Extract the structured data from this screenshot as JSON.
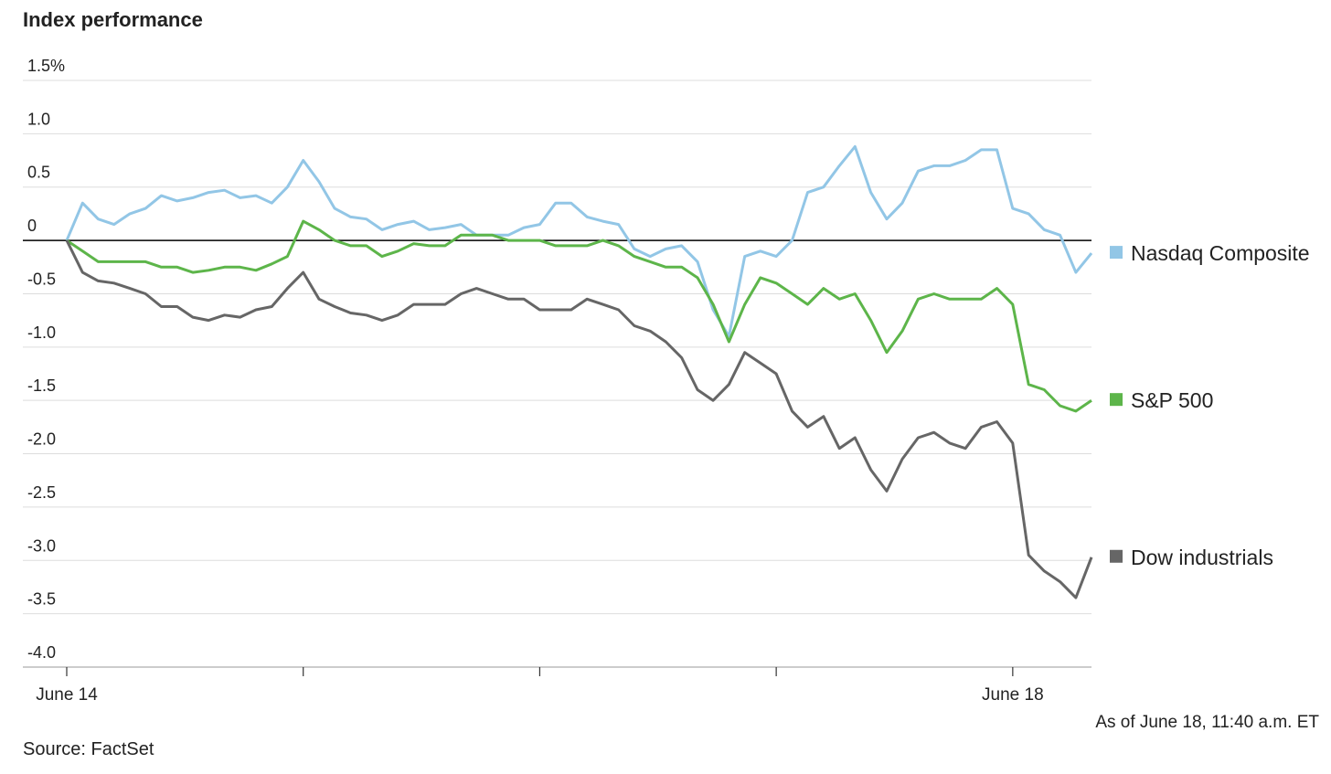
{
  "chart_data": {
    "type": "line",
    "title": "Index performance",
    "note": "As of June 18, 11:40 a.m. ET",
    "source": "Source: FactSet",
    "x": [
      0,
      0.067,
      0.133,
      0.2,
      0.267,
      0.333,
      0.4,
      0.467,
      0.533,
      0.6,
      0.667,
      0.733,
      0.8,
      0.867,
      0.933,
      1,
      1.067,
      1.133,
      1.2,
      1.267,
      1.333,
      1.4,
      1.467,
      1.533,
      1.6,
      1.667,
      1.733,
      1.8,
      1.867,
      1.933,
      2,
      2.067,
      2.133,
      2.2,
      2.267,
      2.333,
      2.4,
      2.467,
      2.533,
      2.6,
      2.667,
      2.733,
      2.8,
      2.867,
      2.933,
      3,
      3.067,
      3.133,
      3.2,
      3.267,
      3.333,
      3.4,
      3.467,
      3.533,
      3.6,
      3.667,
      3.733,
      3.8,
      3.867,
      3.933,
      4,
      4.067,
      4.133,
      4.2,
      4.267,
      4.333
    ],
    "xlim": [
      0,
      4.333
    ],
    "xticks": [
      {
        "value": 0,
        "label": "June 14"
      },
      {
        "value": 1,
        "label": null
      },
      {
        "value": 2,
        "label": null
      },
      {
        "value": 3,
        "label": null
      },
      {
        "value": 4,
        "label": "June 18"
      }
    ],
    "ylim": [
      -4.0,
      1.5
    ],
    "yticks": [
      {
        "value": 1.5,
        "label": "1.5%"
      },
      {
        "value": 1,
        "label": "1.0"
      },
      {
        "value": 0.5,
        "label": "0.5"
      },
      0,
      {
        "value": -0.5,
        "label": "-0.5"
      },
      {
        "value": -1,
        "label": "-1.0"
      },
      {
        "value": -1.5,
        "label": "-1.5"
      },
      {
        "value": -2,
        "label": "-2.0"
      },
      {
        "value": -2.5,
        "label": "-2.5"
      },
      {
        "value": -3,
        "label": "-3.0"
      },
      {
        "value": -3.5,
        "label": "-3.5"
      },
      {
        "value": -4,
        "label": "-4.0"
      }
    ],
    "grid": true,
    "series": [
      {
        "name": "Nasdaq Composite",
        "color": "#92c6e6",
        "values": [
          0,
          0.35,
          0.2,
          0.15,
          0.25,
          0.3,
          0.42,
          0.37,
          0.4,
          0.45,
          0.47,
          0.4,
          0.42,
          0.35,
          0.5,
          0.75,
          0.55,
          0.3,
          0.22,
          0.2,
          0.1,
          0.15,
          0.18,
          0.1,
          0.12,
          0.15,
          0.05,
          0.05,
          0.05,
          0.12,
          0.15,
          0.35,
          0.35,
          0.22,
          0.18,
          0.15,
          -0.08,
          -0.15,
          -0.08,
          -0.05,
          -0.2,
          -0.65,
          -0.9,
          -0.15,
          -0.1,
          -0.15,
          0,
          0.45,
          0.5,
          0.7,
          0.88,
          0.45,
          0.2,
          0.35,
          0.65,
          0.7,
          0.7,
          0.75,
          0.85,
          0.85,
          0.3,
          0.25,
          0.1,
          0.05,
          -0.3,
          -0.12
        ]
      },
      {
        "name": "S&P 500",
        "color": "#5db54a",
        "values": [
          0,
          -0.1,
          -0.2,
          -0.2,
          -0.2,
          -0.2,
          -0.25,
          -0.25,
          -0.3,
          -0.28,
          -0.25,
          -0.25,
          -0.28,
          -0.22,
          -0.15,
          0.18,
          0.1,
          0,
          -0.05,
          -0.05,
          -0.15,
          -0.1,
          -0.03,
          -0.05,
          -0.05,
          0.05,
          0.05,
          0.05,
          0,
          0,
          0,
          -0.05,
          -0.05,
          -0.05,
          0,
          -0.05,
          -0.15,
          -0.2,
          -0.25,
          -0.25,
          -0.35,
          -0.6,
          -0.95,
          -0.6,
          -0.35,
          -0.4,
          -0.5,
          -0.6,
          -0.45,
          -0.55,
          -0.5,
          -0.75,
          -1.05,
          -0.85,
          -0.55,
          -0.5,
          -0.55,
          -0.55,
          -0.55,
          -0.45,
          -0.6,
          -1.35,
          -1.4,
          -1.55,
          -1.6,
          -1.5
        ]
      },
      {
        "name": "Dow industrials",
        "color": "#666666",
        "values": [
          0,
          -0.3,
          -0.38,
          -0.4,
          -0.45,
          -0.5,
          -0.62,
          -0.62,
          -0.72,
          -0.75,
          -0.7,
          -0.72,
          -0.65,
          -0.62,
          -0.45,
          -0.3,
          -0.55,
          -0.62,
          -0.68,
          -0.7,
          -0.75,
          -0.7,
          -0.6,
          -0.6,
          -0.6,
          -0.5,
          -0.45,
          -0.5,
          -0.55,
          -0.55,
          -0.65,
          -0.65,
          -0.65,
          -0.55,
          -0.6,
          -0.65,
          -0.8,
          -0.85,
          -0.95,
          -1.1,
          -1.4,
          -1.5,
          -1.35,
          -1.05,
          -1.15,
          -1.25,
          -1.6,
          -1.75,
          -1.65,
          -1.95,
          -1.85,
          -2.15,
          -2.35,
          -2.05,
          -1.85,
          -1.8,
          -1.9,
          -1.95,
          -1.75,
          -1.7,
          -1.9,
          -2.95,
          -3.1,
          -3.2,
          -3.35,
          -2.97
        ]
      }
    ]
  }
}
